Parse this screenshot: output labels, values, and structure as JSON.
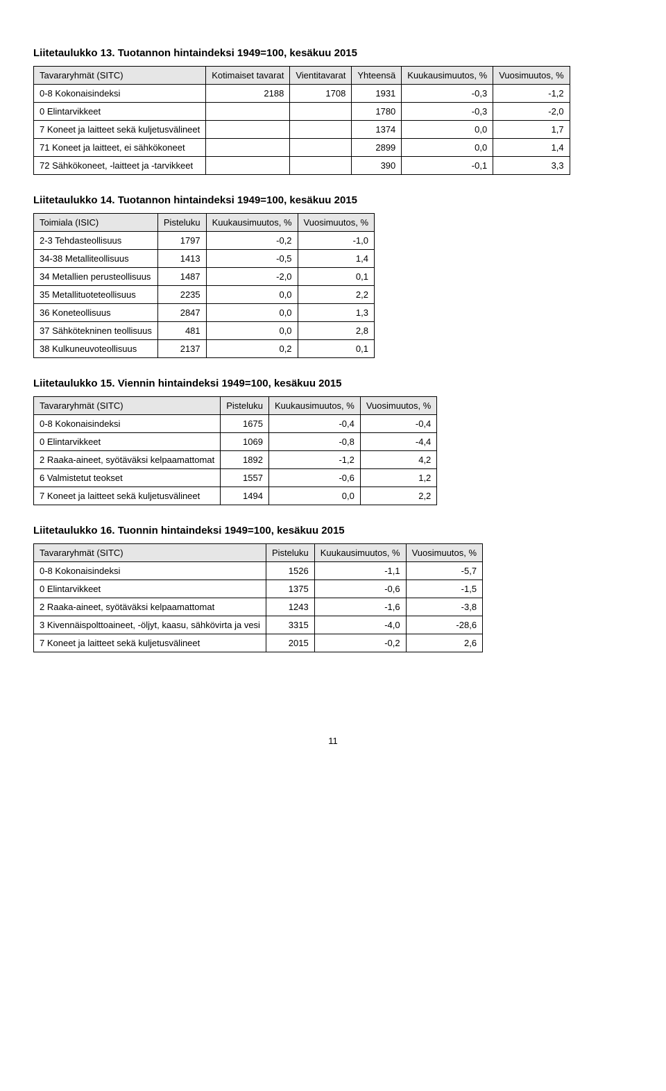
{
  "t13": {
    "title": "Liitetaulukko 13. Tuotannon hintaindeksi 1949=100, kesäkuu 2015",
    "headers": [
      "Tavararyhmät (SITC)",
      "Kotimaiset tavarat",
      "Vientitavarat",
      "Yhteensä",
      "Kuukausimuutos, %",
      "Vuosimuutos, %"
    ],
    "rows": [
      [
        "0-8 Kokonaisindeksi",
        "2188",
        "1708",
        "1931",
        "-0,3",
        "-1,2"
      ],
      [
        "0 Elintarvikkeet",
        "",
        "",
        "1780",
        "-0,3",
        "-2,0"
      ],
      [
        "7 Koneet ja laitteet sekä kuljetusvälineet",
        "",
        "",
        "1374",
        "0,0",
        "1,7"
      ],
      [
        "71 Koneet ja laitteet, ei sähkökoneet",
        "",
        "",
        "2899",
        "0,0",
        "1,4"
      ],
      [
        "72 Sähkökoneet, -laitteet ja -tarvikkeet",
        "",
        "",
        "390",
        "-0,1",
        "3,3"
      ]
    ]
  },
  "t14": {
    "title": "Liitetaulukko 14. Tuotannon hintaindeksi 1949=100, kesäkuu 2015",
    "headers": [
      "Toimiala (ISIC)",
      "Pisteluku",
      "Kuukausimuutos, %",
      "Vuosimuutos, %"
    ],
    "rows": [
      [
        "2-3 Tehdasteollisuus",
        "1797",
        "-0,2",
        "-1,0"
      ],
      [
        "34-38 Metalliteollisuus",
        "1413",
        "-0,5",
        "1,4"
      ],
      [
        "34 Metallien perusteollisuus",
        "1487",
        "-2,0",
        "0,1"
      ],
      [
        "35 Metallituoteteollisuus",
        "2235",
        "0,0",
        "2,2"
      ],
      [
        "36 Koneteollisuus",
        "2847",
        "0,0",
        "1,3"
      ],
      [
        "37 Sähkötekninen teollisuus",
        "481",
        "0,0",
        "2,8"
      ],
      [
        "38 Kulkuneuvoteollisuus",
        "2137",
        "0,2",
        "0,1"
      ]
    ]
  },
  "t15": {
    "title": "Liitetaulukko 15. Viennin hintaindeksi 1949=100, kesäkuu 2015",
    "headers": [
      "Tavararyhmät (SITC)",
      "Pisteluku",
      "Kuukausimuutos, %",
      "Vuosimuutos, %"
    ],
    "rows": [
      [
        "0-8 Kokonaisindeksi",
        "1675",
        "-0,4",
        "-0,4"
      ],
      [
        "0 Elintarvikkeet",
        "1069",
        "-0,8",
        "-4,4"
      ],
      [
        "2 Raaka-aineet, syötäväksi kelpaamattomat",
        "1892",
        "-1,2",
        "4,2"
      ],
      [
        "6 Valmistetut teokset",
        "1557",
        "-0,6",
        "1,2"
      ],
      [
        "7 Koneet ja laitteet sekä kuljetusvälineet",
        "1494",
        "0,0",
        "2,2"
      ]
    ]
  },
  "t16": {
    "title": "Liitetaulukko 16. Tuonnin hintaindeksi 1949=100, kesäkuu 2015",
    "headers": [
      "Tavararyhmät (SITC)",
      "Pisteluku",
      "Kuukausimuutos, %",
      "Vuosimuutos, %"
    ],
    "rows": [
      [
        "0-8 Kokonaisindeksi",
        "1526",
        "-1,1",
        "-5,7"
      ],
      [
        "0 Elintarvikkeet",
        "1375",
        "-0,6",
        "-1,5"
      ],
      [
        "2 Raaka-aineet, syötäväksi kelpaamattomat",
        "1243",
        "-1,6",
        "-3,8"
      ],
      [
        "3 Kivennäispolttoaineet, -öljyt, kaasu, sähkövirta ja vesi",
        "3315",
        "-4,0",
        "-28,6"
      ],
      [
        "7 Koneet ja laitteet sekä kuljetusvälineet",
        "2015",
        "-0,2",
        "2,6"
      ]
    ]
  },
  "pagenum": "11"
}
